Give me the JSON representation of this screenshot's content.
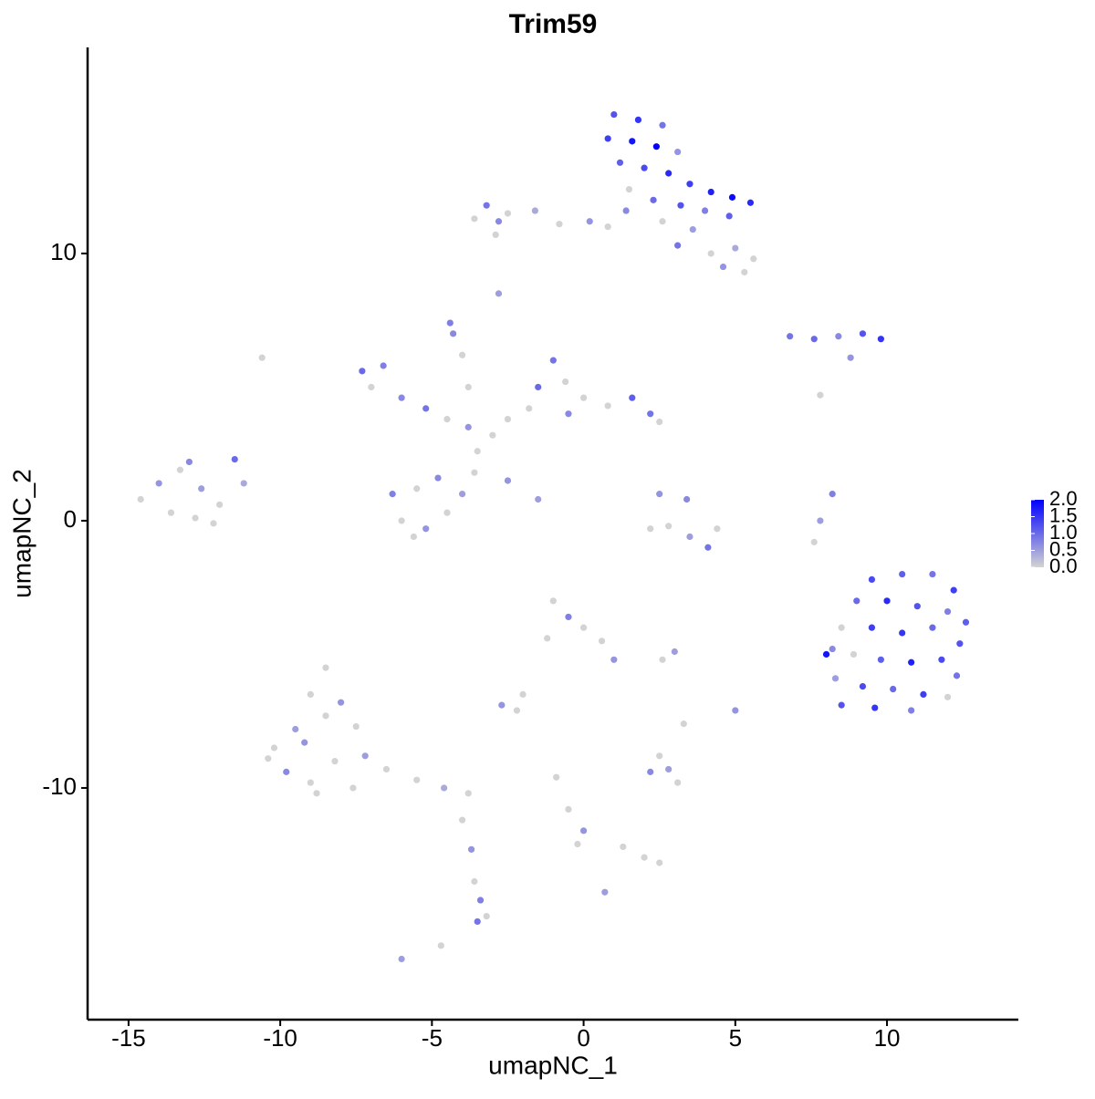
{
  "chart_data": {
    "type": "scatter",
    "title": "Trim59",
    "x_label": "umapNC_1",
    "y_label": "umapNC_2",
    "xlim": [
      -16.35,
      14.33
    ],
    "ylim": [
      -18.67,
      17.71
    ],
    "xticks": [
      -15,
      -10,
      -5,
      0,
      5,
      10
    ],
    "yticks": [
      -10,
      0,
      10
    ],
    "low_color": "#d3d3d3",
    "high_color": "#0000ff",
    "clim": [
      0,
      2
    ],
    "cticks": [
      {
        "value": 0,
        "label": "0.0"
      },
      {
        "value": 0.5,
        "label": "0.5"
      },
      {
        "value": 1,
        "label": "1.0"
      },
      {
        "value": 1.5,
        "label": "1.5"
      },
      {
        "value": 2,
        "label": "2.0"
      }
    ],
    "x": [
      1.0,
      1.8,
      2.6,
      0.8,
      1.6,
      2.4,
      3.1,
      1.2,
      2.0,
      2.8,
      3.5,
      4.2,
      4.9,
      5.5,
      1.5,
      2.3,
      3.2,
      4.0,
      4.8,
      2.6,
      1.4,
      3.6,
      4.2,
      5.0,
      5.6,
      4.6,
      5.3,
      3.1,
      -3.2,
      -2.5,
      -2.8,
      -1.6,
      -0.8,
      0.2,
      0.8,
      -3.6,
      -2.9,
      -2.8,
      -4.4,
      6.8,
      7.6,
      8.4,
      9.2,
      9.8,
      8.8,
      7.8,
      -7.3,
      -6.6,
      -7.0,
      -6.0,
      -5.2,
      -4.5,
      -3.8,
      -3.5,
      -3.0,
      -1.5,
      -1.0,
      -0.6,
      0,
      0.8,
      1.6,
      2.2,
      2.5,
      -1.8,
      -0.5,
      -2.5,
      -6.3,
      -5.5,
      -4.8,
      -6.0,
      -5.2,
      -4.5,
      -4.0,
      -5.6,
      -3.6,
      -2.5,
      -1.5,
      -4.3,
      -4.0,
      -3.8,
      -14.6,
      -14.0,
      -13.3,
      -12.6,
      -13.6,
      -12.8,
      -12.0,
      -11.5,
      -11.2,
      -12.2,
      -13.0,
      -10.6,
      2.5,
      3.4,
      2.8,
      3.5,
      4.4,
      2.2,
      4.1,
      8.2,
      7.8,
      7.6,
      9.5,
      10.5,
      11.5,
      12.2,
      9.0,
      10.0,
      11.0,
      12.0,
      12.6,
      8.5,
      9.5,
      10.5,
      11.5,
      12.4,
      8.2,
      8.9,
      9.8,
      10.8,
      11.8,
      12.3,
      8.3,
      9.2,
      10.2,
      11.2,
      12.0,
      8.5,
      9.6,
      10.8,
      8.0,
      -1.0,
      -0.5,
      0,
      0.6,
      1.0,
      -1.2,
      -2.0,
      -2.7,
      -2.2,
      3.0,
      2.6,
      5.0,
      3.3,
      2.2,
      2.8,
      3.1,
      2.5,
      -0.9,
      -0.5,
      0,
      -0.2,
      1.3,
      2.0,
      2.5,
      0.7,
      -10.2,
      -9.5,
      -9.0,
      -8.5,
      -8.0,
      -7.5,
      -9.8,
      -9.0,
      -8.2,
      -7.2,
      -8.8,
      -7.6,
      -6.5,
      -5.5,
      -4.6,
      -3.8,
      -10.4,
      -9.2,
      -8.5,
      -4.0,
      -3.7,
      -3.6,
      -3.4,
      -3.5,
      -3.2,
      -6.0,
      -4.7
    ],
    "y": [
      15.2,
      15.0,
      14.8,
      14.3,
      14.2,
      14.0,
      13.8,
      13.4,
      13.2,
      13.0,
      12.6,
      12.3,
      12.1,
      11.9,
      12.4,
      12.0,
      11.8,
      11.6,
      11.4,
      11.2,
      11.6,
      10.9,
      10.0,
      10.2,
      9.8,
      9.5,
      9.3,
      10.3,
      11.8,
      11.5,
      11.2,
      11.6,
      11.1,
      11.2,
      11.0,
      11.3,
      10.7,
      8.5,
      7.4,
      6.9,
      6.8,
      6.9,
      7.0,
      6.8,
      6.1,
      4.7,
      5.6,
      5.8,
      5.0,
      4.6,
      4.2,
      3.8,
      3.5,
      2.6,
      3.2,
      5.0,
      6.0,
      5.2,
      4.6,
      4.3,
      4.6,
      4.0,
      3.7,
      4.2,
      4.0,
      3.8,
      1.0,
      1.2,
      1.6,
      0.0,
      -0.3,
      0.3,
      1.0,
      -0.6,
      1.8,
      1.5,
      0.8,
      7.0,
      6.2,
      5.0,
      0.8,
      1.4,
      1.9,
      1.2,
      0.3,
      0.1,
      0.6,
      2.3,
      1.4,
      -0.1,
      2.2,
      6.1,
      1.0,
      0.8,
      -0.2,
      -0.6,
      -0.3,
      -0.3,
      -1.0,
      1.0,
      0,
      -0.8,
      -2.2,
      -2.0,
      -2.0,
      -2.6,
      -3.0,
      -3.0,
      -3.2,
      -3.4,
      -3.8,
      -4.0,
      -4.0,
      -4.2,
      -4.0,
      -4.6,
      -4.8,
      -5.0,
      -5.2,
      -5.3,
      -5.2,
      -5.8,
      -5.9,
      -6.2,
      -6.3,
      -6.5,
      -6.6,
      -6.9,
      -7.0,
      -7.1,
      -5.0,
      -3.0,
      -3.6,
      -4.0,
      -4.5,
      -5.2,
      -4.4,
      -6.5,
      -6.9,
      -7.1,
      -4.9,
      -5.2,
      -7.1,
      -7.6,
      -9.4,
      -9.3,
      -9.8,
      -8.8,
      -9.6,
      -10.8,
      -11.6,
      -12.1,
      -12.2,
      -12.6,
      -12.8,
      -13.9,
      -8.5,
      -7.8,
      -6.5,
      -5.5,
      -6.8,
      -7.7,
      -9.4,
      -9.8,
      -9.0,
      -8.8,
      -10.2,
      -10.0,
      -9.3,
      -9.7,
      -10.0,
      -10.2,
      -8.9,
      -8.3,
      -7.3,
      -11.2,
      -12.3,
      -13.5,
      -14.2,
      -15.0,
      -14.8,
      -16.4,
      -15.9
    ],
    "values": [
      1.2,
      1.5,
      0.9,
      1.4,
      1.8,
      2.0,
      0.6,
      1.1,
      1.3,
      1.6,
      1.4,
      1.7,
      1.9,
      1.6,
      0,
      1.0,
      1.2,
      0.8,
      1.1,
      0,
      0.7,
      0.5,
      0,
      0.4,
      0,
      0.6,
      0,
      0.9,
      0.9,
      0,
      0.7,
      0.4,
      0,
      0.6,
      0,
      0,
      0,
      0.5,
      0.8,
      0.9,
      1.0,
      0.7,
      1.2,
      1.5,
      0.6,
      0,
      1.0,
      0.8,
      0,
      0.7,
      0.9,
      0,
      0.6,
      0,
      0,
      1.0,
      0.9,
      0,
      0,
      0,
      1.1,
      0.9,
      0,
      0,
      0.7,
      0,
      0.8,
      0,
      0.7,
      0,
      0.6,
      0,
      0.5,
      0,
      0,
      0.6,
      0.5,
      0.7,
      0,
      0,
      0,
      0.6,
      0,
      0.5,
      0,
      0,
      0,
      1.0,
      0.4,
      0,
      0.7,
      0,
      0.6,
      0.7,
      0,
      0.5,
      0,
      0,
      0.9,
      0.8,
      0.5,
      0,
      1.3,
      1.1,
      0.9,
      1.4,
      1.0,
      1.6,
      1.2,
      0.8,
      1.1,
      0,
      1.4,
      1.5,
      1.0,
      1.2,
      0.7,
      0,
      1.1,
      1.7,
      1.3,
      0.9,
      0.5,
      1.3,
      1.0,
      1.4,
      0,
      1.2,
      1.5,
      0.8,
      1.8,
      0,
      0.8,
      0,
      0,
      0.6,
      0,
      0,
      0.6,
      0,
      0.5,
      0,
      0.6,
      0,
      0.7,
      0.5,
      0,
      0,
      0,
      0,
      0.6,
      0,
      0,
      0,
      0,
      0.5,
      0,
      0.5,
      0,
      0,
      0.6,
      0,
      0.7,
      0,
      0,
      0.5,
      0,
      0,
      0,
      0,
      0.4,
      0,
      0,
      0.6,
      0,
      0,
      0.6,
      0,
      0.8,
      0.9,
      0,
      0.5,
      0
    ]
  }
}
